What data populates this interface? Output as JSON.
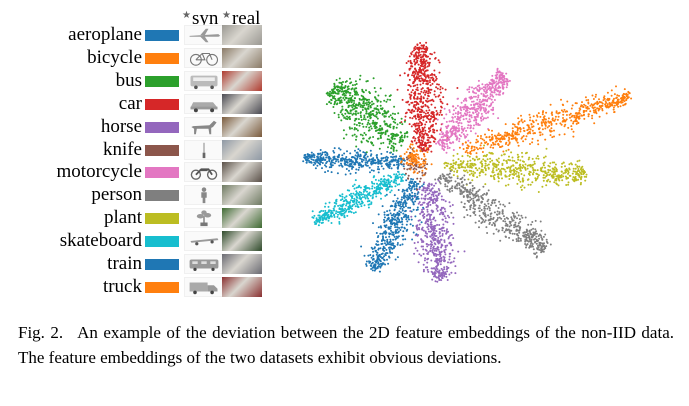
{
  "column_headers": {
    "syn": "syn",
    "real": "real"
  },
  "legend": [
    {
      "label": "aeroplane",
      "color": "#1f77b4",
      "icon": "aeroplane-icon",
      "real_color": "#9a9892"
    },
    {
      "label": "bicycle",
      "color": "#ff7f0e",
      "icon": "bicycle-icon",
      "real_color": "#8a7a66"
    },
    {
      "label": "bus",
      "color": "#2ca02c",
      "icon": "bus-icon",
      "real_color": "#b03a2e"
    },
    {
      "label": "car",
      "color": "#d62728",
      "icon": "car-icon",
      "real_color": "#4a4a52"
    },
    {
      "label": "horse",
      "color": "#9467bd",
      "icon": "horse-icon",
      "real_color": "#7a5a3c"
    },
    {
      "label": "knife",
      "color": "#8c564b",
      "icon": "knife-icon",
      "real_color": "#8e98a4"
    },
    {
      "label": "motorcycle",
      "color": "#e377c2",
      "icon": "motorcycle-icon",
      "real_color": "#5a5048"
    },
    {
      "label": "person",
      "color": "#7f7f7f",
      "icon": "person-icon",
      "real_color": "#6e7a62"
    },
    {
      "label": "plant",
      "color": "#bcbd22",
      "icon": "plant-icon",
      "real_color": "#3e6a32"
    },
    {
      "label": "skateboard",
      "color": "#17becf",
      "icon": "skateboard-icon",
      "real_color": "#2e4a2a"
    },
    {
      "label": "train",
      "color": "#1f77b4",
      "icon": "train-icon",
      "real_color": "#6a6a72"
    },
    {
      "label": "truck",
      "color": "#ff7f0e",
      "icon": "truck-icon",
      "real_color": "#8a3030"
    }
  ],
  "caption": {
    "label": "Fig. 2.",
    "text": "An example of the deviation between the 2D feature embeddings of the non-IID data. The feature embeddings of the two datasets exhibit obvious deviations."
  }
}
